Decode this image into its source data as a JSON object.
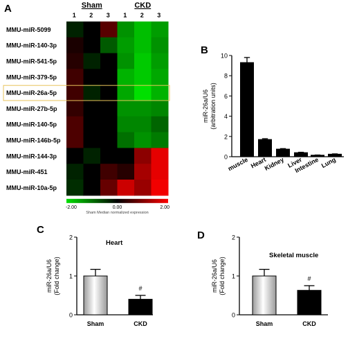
{
  "chart_data": [
    {
      "panel": "A",
      "type": "heatmap",
      "groups": [
        {
          "name": "Sham",
          "columns": [
            "1",
            "2",
            "3"
          ]
        },
        {
          "name": "CKD",
          "columns": [
            "1",
            "2",
            "3"
          ]
        }
      ],
      "rows": [
        "MMU-miR-5099",
        "MMU-miR-140-3p",
        "MMU-miR-541-5p",
        "MMU-miR-379-5p",
        "MMU-miR-26a-5p",
        "MMU-miR-27b-5p",
        "MMU-miR-140-5p",
        "MMU-miR-146b-5p",
        "MMU-miR-144-3p",
        "MMU-miR-451",
        "MMU-miR-10a-5p"
      ],
      "highlighted_row": "MMU-miR-26a-5p",
      "values": [
        [
          -0.3,
          0.0,
          0.7,
          -1.3,
          -1.7,
          -1.4
        ],
        [
          0.2,
          0.0,
          -0.8,
          -1.4,
          -1.7,
          -1.3
        ],
        [
          0.3,
          -0.3,
          0.0,
          -1.3,
          -1.8,
          -1.4
        ],
        [
          0.5,
          0.0,
          0.0,
          -1.6,
          -1.8,
          -1.5
        ],
        [
          0.5,
          -0.3,
          0.0,
          -1.5,
          -2.0,
          -1.6
        ],
        [
          0.4,
          0.0,
          0.0,
          -1.3,
          -1.3,
          -1.2
        ],
        [
          0.6,
          0.0,
          0.0,
          -1.2,
          -1.2,
          -0.9
        ],
        [
          0.6,
          0.0,
          0.0,
          -1.0,
          -1.3,
          -1.1
        ],
        [
          0.0,
          -0.3,
          0.0,
          0.0,
          1.1,
          1.8
        ],
        [
          -0.3,
          0.0,
          0.5,
          0.3,
          1.3,
          1.8
        ],
        [
          -0.4,
          0.0,
          0.8,
          1.6,
          1.2,
          1.9
        ]
      ],
      "scale": {
        "min_label": "-2.00",
        "mid_label": "0.00",
        "max_label": "2.00",
        "caption": "Sham Median normalized expression",
        "low_color": "#00e000",
        "mid_color": "#000000",
        "high_color": "#ff0000"
      }
    },
    {
      "panel": "B",
      "type": "bar",
      "ylabel": "miR-26a/U6\n(arbitration units)",
      "categories": [
        "muscle",
        "Heart",
        "Kidney",
        "Liver",
        "Intestine",
        "Lung"
      ],
      "values": [
        9.3,
        1.7,
        0.75,
        0.4,
        0.15,
        0.25
      ],
      "errors": [
        0.5,
        0.08,
        0.05,
        0.04,
        0.02,
        0.03
      ],
      "ylim": [
        0,
        10
      ],
      "yticks": [
        "0",
        "2",
        "4",
        "6",
        "8",
        "10"
      ],
      "bar_color": "#000000"
    },
    {
      "panel": "C",
      "type": "bar",
      "title": "Heart",
      "ylabel": "miR-26a/U6\n(Fold change)",
      "categories": [
        "Sham",
        "CKD"
      ],
      "values": [
        1.0,
        0.4
      ],
      "errors": [
        0.17,
        0.1
      ],
      "annotation": "#",
      "ylim": [
        0,
        2
      ],
      "yticks": [
        "0",
        "1",
        "2"
      ]
    },
    {
      "panel": "D",
      "type": "bar",
      "title": "Skeletal muscle",
      "ylabel": "miR-26a/U6\n(Fold change)",
      "categories": [
        "Sham",
        "CKD"
      ],
      "values": [
        1.0,
        0.63
      ],
      "errors": [
        0.17,
        0.12
      ],
      "annotation": "#",
      "ylim": [
        0,
        2
      ],
      "yticks": [
        "0",
        "1",
        "2"
      ]
    }
  ]
}
